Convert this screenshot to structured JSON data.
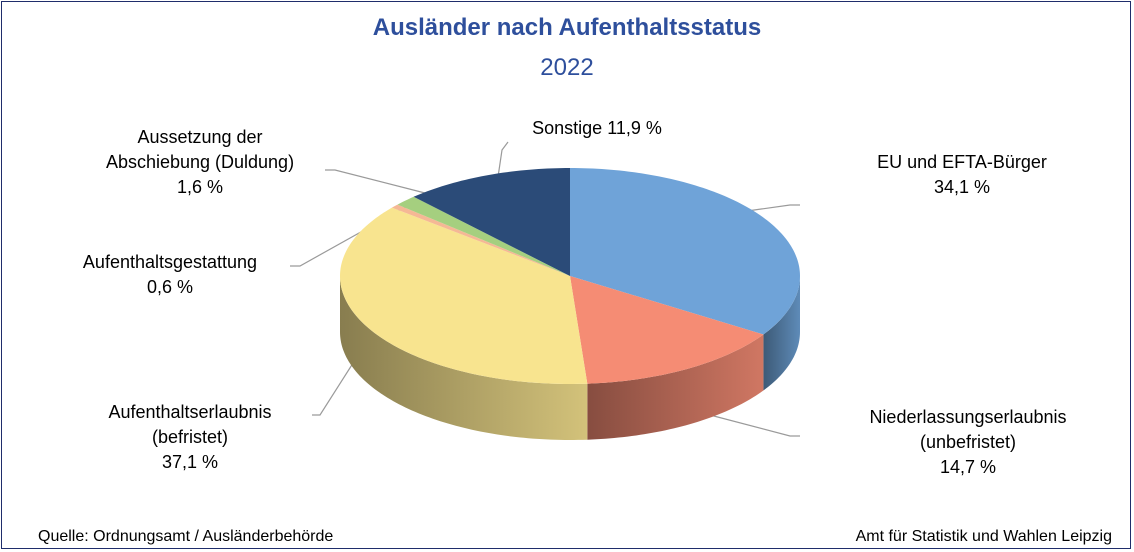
{
  "chart_data": {
    "type": "pie3d",
    "title": "Ausländer nach Aufenthaltsstatus",
    "subtitle": "2022",
    "categories": [
      "EU und EFTA-Bürger",
      "Niederlassungserlaubnis (unbefristet)",
      "Aufenthaltserlaubnis (befristet)",
      "Aufenthaltsgestattung",
      "Aussetzung der Abschiebung (Duldung)",
      "Sonstige"
    ],
    "values": [
      34.1,
      14.7,
      37.1,
      0.6,
      1.6,
      11.9
    ],
    "value_labels": [
      "34,1 %",
      "14,7 %",
      "37,1 %",
      "0,6 %",
      "1,6 %",
      "11,9 %"
    ],
    "colors": [
      "#6fa3d8",
      "#f58c74",
      "#f8e48f",
      "#f5b895",
      "#a5cf7f",
      "#2b4b78"
    ],
    "source": "Quelle: Ordnungsamt / Ausländerbehörde",
    "credit": "Amt für Statistik und Wahlen Leipzig"
  }
}
